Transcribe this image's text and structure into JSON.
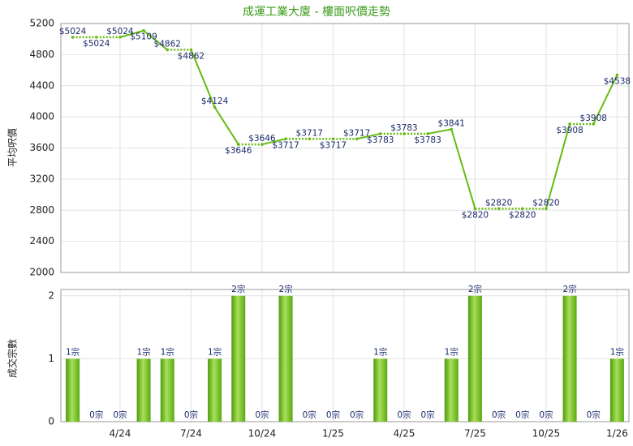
{
  "chart_data": [
    {
      "type": "line",
      "title": "成運工業大廈 - 樓面呎價走勢",
      "y_label": "平均呎價",
      "color": "#66bb11",
      "values": [
        5024,
        5024,
        5024,
        5109,
        4862,
        4862,
        4124,
        3646,
        3646,
        3717,
        3717,
        3717,
        3717,
        3783,
        3783,
        3783,
        3841,
        2820,
        2820,
        2820,
        2820,
        3908,
        3908,
        4538
      ],
      "value_labels": [
        "$5024",
        "$5024",
        "$5024",
        "$5109",
        "$4862",
        "$4862",
        "$4124",
        "$3646",
        "$3646",
        "$3717",
        "$3717",
        "$3717",
        "$3717",
        "$3783",
        "$3783",
        "$3783",
        "$3841",
        "$2820",
        "$2820",
        "$2820",
        "$2820",
        "$3908",
        "$3908",
        "$4538"
      ],
      "ylim": [
        2000,
        5200
      ],
      "yticks": [
        2000,
        2400,
        2800,
        3200,
        3600,
        4000,
        4400,
        4800,
        5200
      ],
      "grid": true
    },
    {
      "type": "bar",
      "y_label": "成交宗數",
      "color": "#66bb11",
      "categories": [
        null,
        null,
        "4/24",
        null,
        null,
        "7/24",
        null,
        null,
        "10/24",
        null,
        null,
        "1/25",
        null,
        null,
        "4/25",
        null,
        null,
        "7/25",
        null,
        null,
        "10/25",
        null,
        null,
        "1/26"
      ],
      "values": [
        1,
        0,
        0,
        1,
        1,
        0,
        1,
        2,
        0,
        2,
        0,
        0,
        0,
        1,
        0,
        0,
        1,
        2,
        0,
        0,
        0,
        2,
        0,
        1
      ],
      "value_labels": [
        "1宗",
        "0宗",
        "0宗",
        "1宗",
        "1宗",
        "0宗",
        "1宗",
        "2宗",
        "0宗",
        "2宗",
        "0宗",
        "0宗",
        "0宗",
        "1宗",
        "0宗",
        "0宗",
        "1宗",
        "2宗",
        "0宗",
        "0宗",
        "0宗",
        "2宗",
        "0宗",
        "1宗"
      ],
      "ylim": [
        0,
        2.1
      ],
      "yticks": [
        0,
        1,
        2
      ],
      "grid": true
    }
  ]
}
